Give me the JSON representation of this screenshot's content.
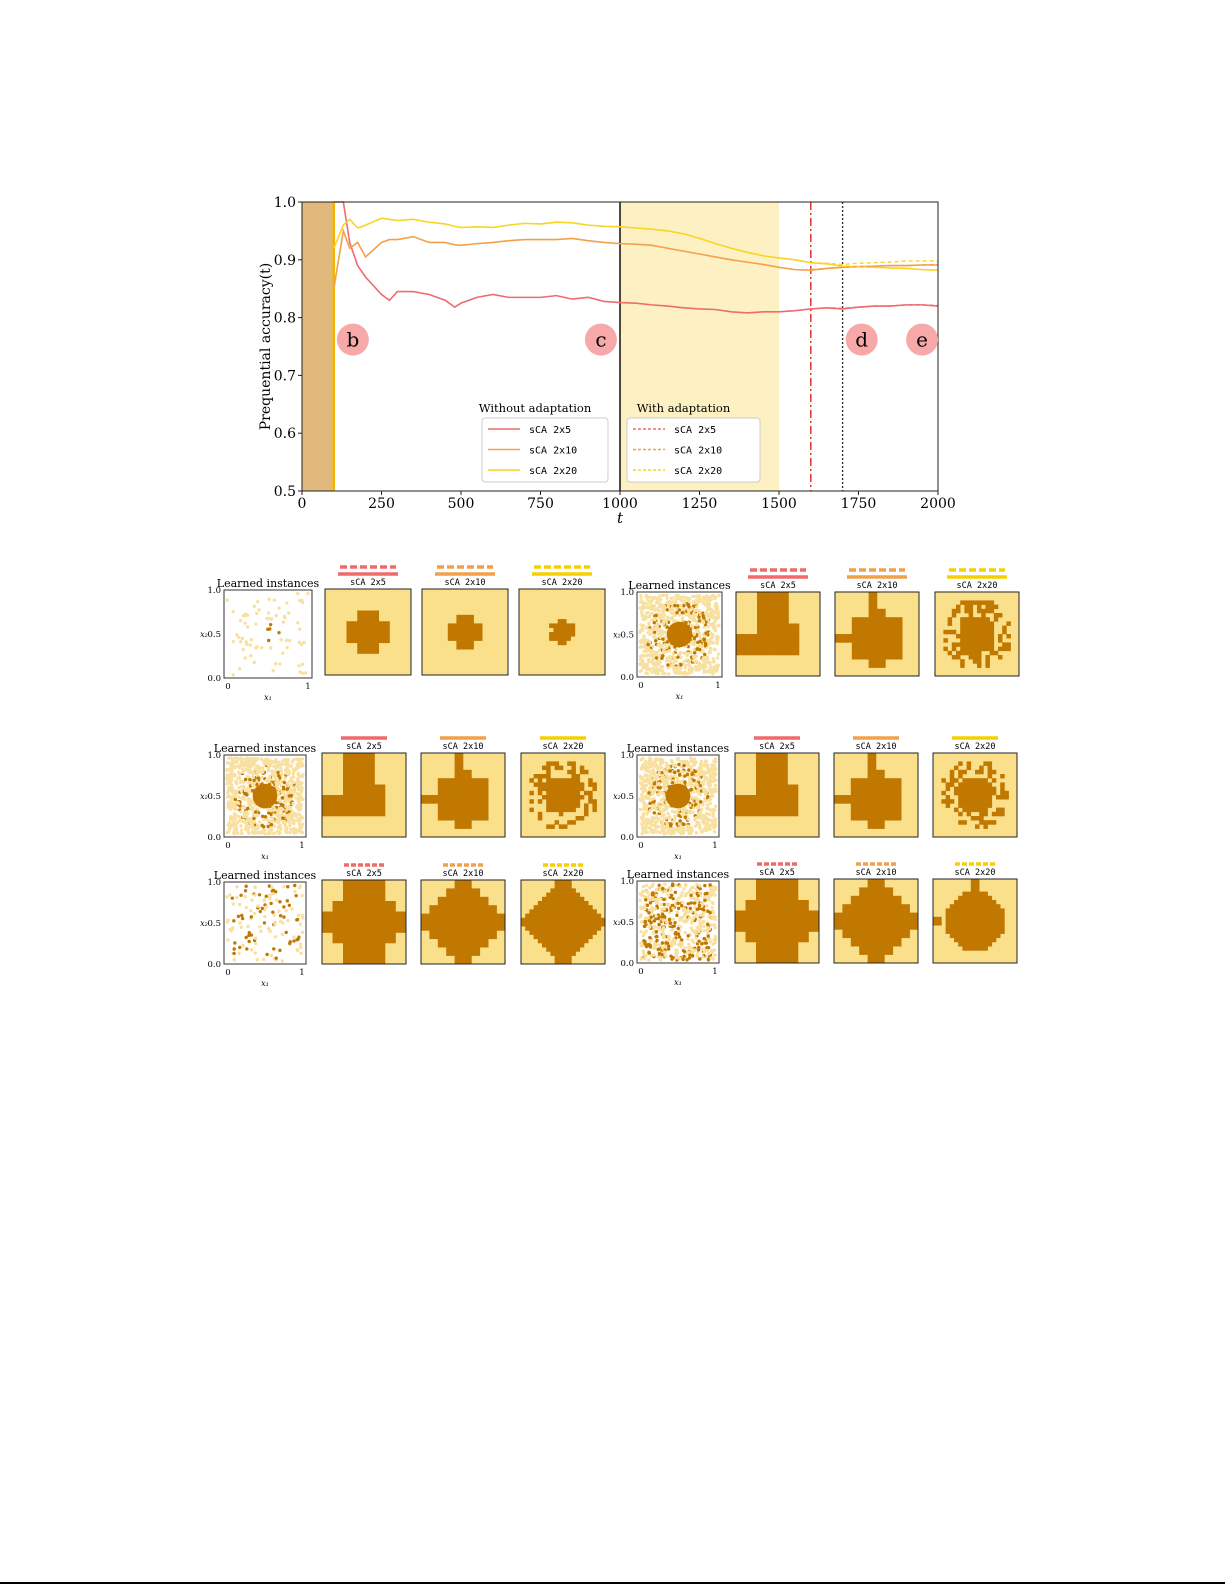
{
  "chart_data": [
    {
      "type": "line",
      "xlabel": "t",
      "ylabel": "Prequential accuracy(t)",
      "xlim": [
        0,
        2000
      ],
      "ylim": [
        0.5,
        1.0
      ],
      "xticks": [
        "0",
        "250",
        "500",
        "750",
        "1000",
        "1250",
        "1500",
        "1750",
        "2000"
      ],
      "yticks": [
        "0.5",
        "0.6",
        "0.7",
        "0.8",
        "0.9",
        "1.0"
      ],
      "grid": false,
      "shaded_regions": [
        {
          "from": 0,
          "to": 100,
          "color": "#e2b97d"
        },
        {
          "from": 1000,
          "to": 1500,
          "color": "#fdf1c4"
        }
      ],
      "vertical_lines": [
        {
          "x": 100,
          "style": "solid",
          "color": "#f5b400"
        },
        {
          "x": 1000,
          "style": "solid",
          "color": "#000000"
        },
        {
          "x": 1600,
          "style": "dashdot",
          "color": "#e02020"
        },
        {
          "x": 1700,
          "style": "dotted",
          "color": "#333333"
        }
      ],
      "markers": [
        {
          "label": "b",
          "x": 160,
          "y": 0.762
        },
        {
          "label": "c",
          "x": 940,
          "y": 0.762
        },
        {
          "label": "d",
          "x": 1760,
          "y": 0.762
        },
        {
          "label": "e",
          "x": 1950,
          "y": 0.762
        }
      ],
      "legends": [
        {
          "title": "Without adaptation",
          "entries": [
            "sCA 2x5",
            "sCA 2x10",
            "sCA 2x20"
          ],
          "style": "solid"
        },
        {
          "title": "With adaptation",
          "entries": [
            "sCA 2x5",
            "sCA 2x10",
            "sCA 2x20"
          ],
          "style": "dashed"
        }
      ],
      "x": [
        100,
        130,
        150,
        175,
        200,
        250,
        275,
        300,
        350,
        400,
        450,
        480,
        500,
        550,
        600,
        650,
        700,
        750,
        800,
        850,
        900,
        950,
        1000,
        1050,
        1100,
        1150,
        1200,
        1250,
        1300,
        1350,
        1400,
        1450,
        1500,
        1550,
        1600,
        1650,
        1700,
        1750,
        1800,
        1850,
        1900,
        1950,
        2000
      ],
      "series": [
        {
          "name": "sCA 2x5",
          "style": "solid",
          "color": "#ee6b6e",
          "values": [
            1.0,
            1.0,
            0.93,
            0.89,
            0.87,
            0.84,
            0.83,
            0.845,
            0.845,
            0.84,
            0.83,
            0.818,
            0.825,
            0.835,
            0.84,
            0.835,
            0.835,
            0.835,
            0.838,
            0.832,
            0.835,
            0.828,
            0.826,
            0.825,
            0.822,
            0.82,
            0.817,
            0.815,
            0.814,
            0.81,
            0.808,
            0.81,
            0.81,
            0.812,
            0.815,
            0.817,
            0.815,
            0.818,
            0.82,
            0.82,
            0.822,
            0.822,
            0.82
          ]
        },
        {
          "name": "sCA 2x10",
          "style": "solid",
          "color": "#f4a04a",
          "values": [
            0.85,
            0.95,
            0.92,
            0.93,
            0.905,
            0.93,
            0.935,
            0.935,
            0.94,
            0.93,
            0.93,
            0.926,
            0.925,
            0.928,
            0.93,
            0.933,
            0.935,
            0.935,
            0.935,
            0.937,
            0.933,
            0.93,
            0.928,
            0.927,
            0.925,
            0.92,
            0.915,
            0.91,
            0.905,
            0.9,
            0.896,
            0.892,
            0.887,
            0.883,
            0.882,
            0.885,
            0.887,
            0.888,
            0.889,
            0.89,
            0.89,
            0.891,
            0.891
          ]
        },
        {
          "name": "sCA 2x20",
          "style": "solid",
          "color": "#f9d423",
          "values": [
            0.92,
            0.96,
            0.97,
            0.955,
            0.96,
            0.972,
            0.97,
            0.968,
            0.97,
            0.965,
            0.962,
            0.958,
            0.956,
            0.957,
            0.956,
            0.96,
            0.963,
            0.962,
            0.965,
            0.964,
            0.96,
            0.958,
            0.957,
            0.955,
            0.953,
            0.95,
            0.945,
            0.937,
            0.928,
            0.92,
            0.913,
            0.907,
            0.903,
            0.9,
            0.895,
            0.893,
            0.889,
            0.888,
            0.887,
            0.886,
            0.885,
            0.883,
            0.882
          ]
        }
      ],
      "adaptation_x": [
        1600,
        1650,
        1700,
        1750,
        1800,
        1850,
        1900,
        1950,
        2000
      ],
      "adaptation_series": [
        {
          "name": "sCA 2x5",
          "style": "dashed",
          "color": "#ee6b6e",
          "values": [
            0.815,
            0.817,
            0.816,
            0.818,
            0.82,
            0.82,
            0.822,
            0.822,
            0.821
          ]
        },
        {
          "name": "sCA 2x10",
          "style": "dashed",
          "color": "#f4a04a",
          "values": [
            0.883,
            0.885,
            0.887,
            0.888,
            0.889,
            0.89,
            0.89,
            0.891,
            0.892
          ]
        },
        {
          "name": "sCA 2x20",
          "style": "dashed",
          "color": "#f9d423",
          "values": [
            0.895,
            0.894,
            0.892,
            0.894,
            0.895,
            0.896,
            0.898,
            0.898,
            0.898
          ]
        }
      ]
    }
  ],
  "panels": {
    "scatter_title": "Learned instances",
    "x_label": "x₁",
    "y_label": "x₂",
    "x_ticks": [
      "0",
      "1"
    ],
    "y_ticks": [
      "0.0",
      "0.5",
      "1.0"
    ],
    "map_labels": [
      "sCA 2x5",
      "sCA 2x10",
      "sCA 2x20"
    ],
    "colors": {
      "class_dark": "#c07800",
      "class_light": "#fbe08c",
      "point_light": "#f8e0a0",
      "red": "#f06a6a",
      "orange": "#f4a04a",
      "yellow": "#f5d000"
    },
    "groups": [
      {
        "id": "row1-left",
        "legend": "dashed-and-solid",
        "instances": "sparse-center",
        "shapes": [
          "cross-small",
          "blob-small",
          "blob-small-ragged"
        ]
      },
      {
        "id": "row1-right",
        "legend": "dashed-and-solid",
        "instances": "dense-ring",
        "shapes": [
          "block",
          "round-big",
          "ragged-big"
        ]
      },
      {
        "id": "row2-left",
        "legend": "solid",
        "instances": "dense-ring",
        "shapes": [
          "block",
          "round-big",
          "ragged-big"
        ]
      },
      {
        "id": "row2-right",
        "legend": "solid",
        "instances": "dense-ring",
        "shapes": [
          "block",
          "round-big",
          "ragged-big"
        ]
      },
      {
        "id": "row3-left",
        "legend": "dashed",
        "instances": "sparse-uniform",
        "shapes": [
          "cross-big",
          "diamond-big",
          "diamond-big-fine"
        ]
      },
      {
        "id": "row3-right",
        "legend": "dashed",
        "instances": "medium-uniform",
        "shapes": [
          "cross-big",
          "diamond-big",
          "round-big-fine"
        ]
      }
    ]
  }
}
